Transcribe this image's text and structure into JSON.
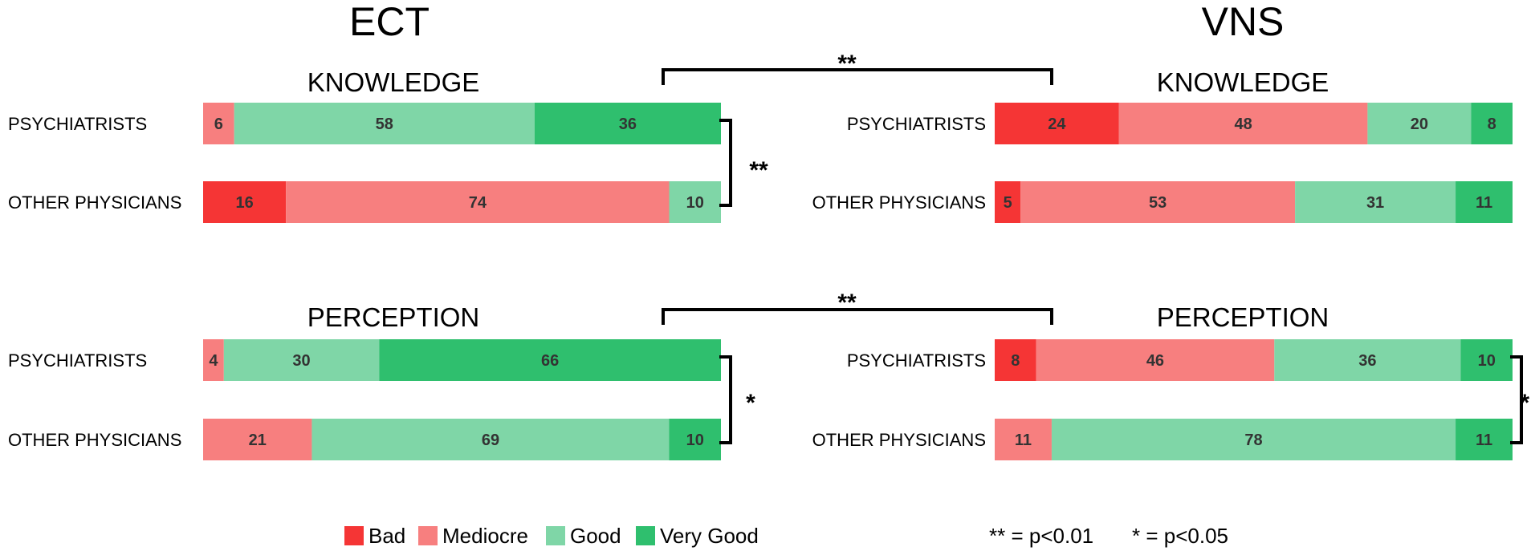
{
  "colors": {
    "Bad": "#f53535",
    "Mediocre": "#f77f7f",
    "Good": "#7fd6a7",
    "Very Good": "#2fbf6e"
  },
  "legend": {
    "items": [
      "Bad",
      "Mediocre",
      "Good",
      "Very Good"
    ],
    "note_double": "** = p<0.01",
    "note_single": "* = p<0.05"
  },
  "chart_data": [
    {
      "type": "bar",
      "stacked": true,
      "orientation": "horizontal",
      "title": "ECT",
      "subtitle": "KNOWLEDGE",
      "categories": [
        "PSYCHIATRISTS",
        "OTHER PHYSICIANS"
      ],
      "series": [
        {
          "name": "Bad",
          "values": [
            0,
            16
          ]
        },
        {
          "name": "Mediocre",
          "values": [
            6,
            74
          ]
        },
        {
          "name": "Good",
          "values": [
            58,
            10
          ]
        },
        {
          "name": "Very Good",
          "values": [
            36,
            0
          ]
        }
      ],
      "significance": "**"
    },
    {
      "type": "bar",
      "stacked": true,
      "orientation": "horizontal",
      "title": "VNS",
      "subtitle": "KNOWLEDGE",
      "categories": [
        "PSYCHIATRISTS",
        "OTHER PHYSICIANS"
      ],
      "series": [
        {
          "name": "Bad",
          "values": [
            24,
            5
          ]
        },
        {
          "name": "Mediocre",
          "values": [
            48,
            53
          ]
        },
        {
          "name": "Good",
          "values": [
            20,
            31
          ]
        },
        {
          "name": "Very Good",
          "values": [
            8,
            11
          ]
        }
      ],
      "significance": ""
    },
    {
      "type": "bar",
      "stacked": true,
      "orientation": "horizontal",
      "title": "ECT",
      "subtitle": "PERCEPTION",
      "categories": [
        "PSYCHIATRISTS",
        "OTHER PHYSICIANS"
      ],
      "series": [
        {
          "name": "Bad",
          "values": [
            0,
            0
          ]
        },
        {
          "name": "Mediocre",
          "values": [
            4,
            21
          ]
        },
        {
          "name": "Good",
          "values": [
            30,
            69
          ]
        },
        {
          "name": "Very Good",
          "values": [
            66,
            10
          ]
        }
      ],
      "significance": "*"
    },
    {
      "type": "bar",
      "stacked": true,
      "orientation": "horizontal",
      "title": "VNS",
      "subtitle": "PERCEPTION",
      "categories": [
        "PSYCHIATRISTS",
        "OTHER PHYSICIANS"
      ],
      "series": [
        {
          "name": "Bad",
          "values": [
            8,
            0
          ]
        },
        {
          "name": "Mediocre",
          "values": [
            46,
            11
          ]
        },
        {
          "name": "Good",
          "values": [
            36,
            78
          ]
        },
        {
          "name": "Very Good",
          "values": [
            10,
            11
          ]
        }
      ],
      "significance": "*"
    }
  ],
  "comparisons": [
    {
      "between": "ECT KNOWLEDGE vs VNS KNOWLEDGE",
      "label": "**"
    },
    {
      "between": "ECT PERCEPTION vs VNS PERCEPTION",
      "label": "**"
    }
  ]
}
